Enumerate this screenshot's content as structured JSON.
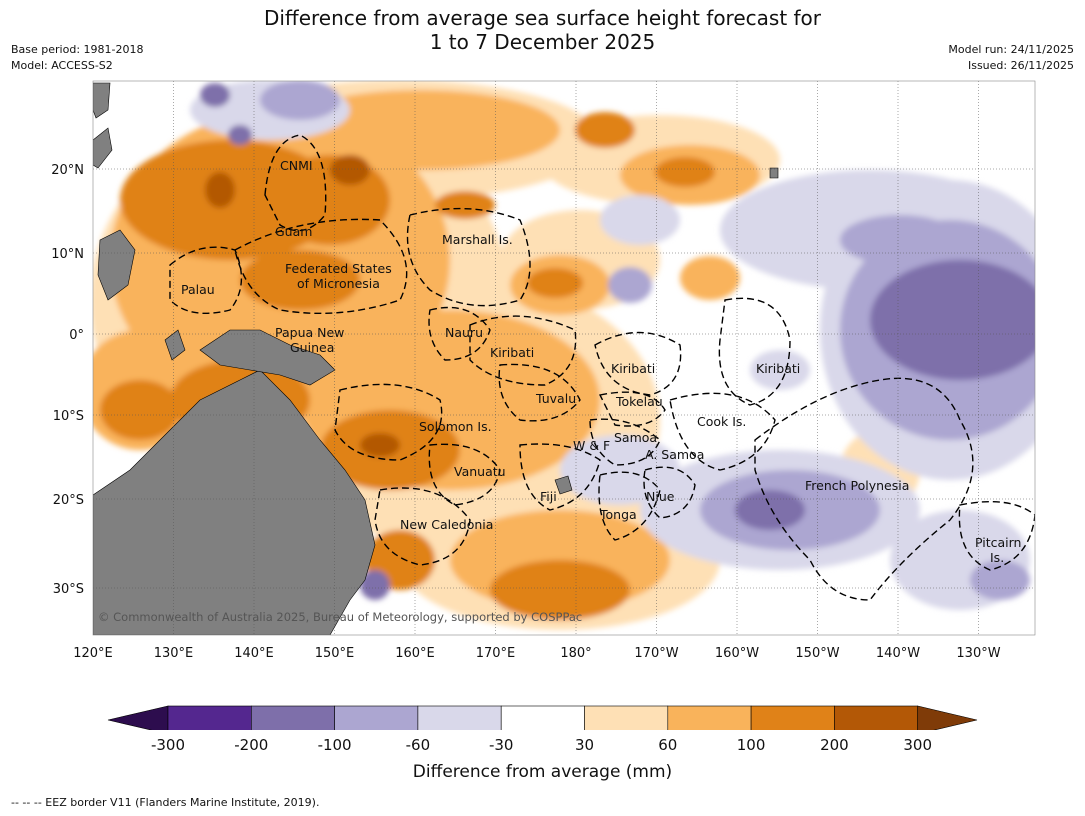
{
  "header": {
    "title_line1": "Difference from average sea surface height forecast for",
    "title_line2": "1 to 7 December 2025",
    "base_period": "Base period: 1981-2018",
    "model": "Model: ACCESS-S2",
    "model_run": "Model run: 24/11/2025",
    "issued": "Issued: 26/11/2025"
  },
  "map": {
    "lon_labels": [
      "120°E",
      "130°E",
      "140°E",
      "150°E",
      "160°E",
      "170°E",
      "180°",
      "170°W",
      "160°W",
      "150°W",
      "140°W",
      "130°W"
    ],
    "lat_labels": [
      "20°N",
      "10°N",
      "0°",
      "10°S",
      "20°S",
      "30°S"
    ],
    "places": [
      "CNMI",
      "Guam",
      "Marshall Is.",
      "Federated States",
      "of Micronesia",
      "Palau",
      "Nauru",
      "Papua New",
      "Guinea",
      "Kiribati",
      "Kiribati",
      "Kiribati",
      "Tuvalu",
      "Tokelau",
      "Cook Is.",
      "Solomon Is.",
      "W & F",
      "Samoa",
      "A. Samoa",
      "Vanuatu",
      "Fiji",
      "Niue",
      "French Polynesia",
      "Tonga",
      "New Caledonia",
      "Pitcairn",
      "Is."
    ],
    "copyright": "© Commonwealth of Australia 2025, Bureau of Meteorology, supported by COSPPac"
  },
  "colorbar": {
    "ticks": [
      "-300",
      "-200",
      "-100",
      "-60",
      "-30",
      "30",
      "60",
      "100",
      "200",
      "300"
    ],
    "colors": [
      "#2d0d4e",
      "#54278f",
      "#7e6faa",
      "#aca6d1",
      "#d9d8ea",
      "#ffffff",
      "#fee0b5",
      "#f9b35b",
      "#e08218",
      "#b35806",
      "#7f3b08"
    ],
    "label": "Difference from average (mm)"
  },
  "footer": {
    "legend": "--  --  -- EEZ border V11 (Flanders Marine Institute, 2019)."
  }
}
